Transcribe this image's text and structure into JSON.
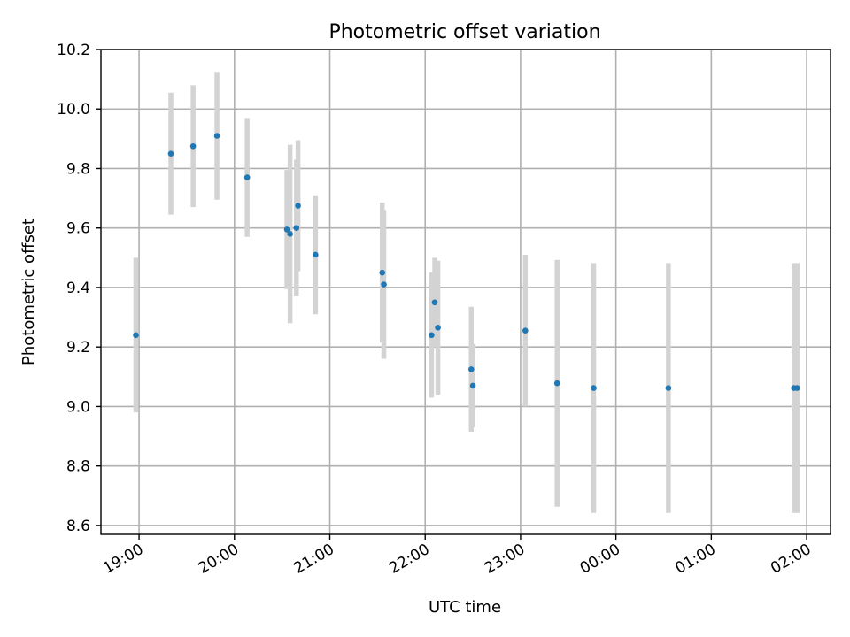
{
  "chart_data": {
    "type": "scatter",
    "title": "Photometric offset variation",
    "xlabel": "UTC time",
    "ylabel": "Photometric offset",
    "ylim": [
      8.57,
      10.2
    ],
    "yticks": [
      "8.6",
      "8.8",
      "9.0",
      "9.2",
      "9.4",
      "9.6",
      "9.8",
      "10.0",
      "10.2"
    ],
    "xlim_hours": [
      18.6,
      26.25
    ],
    "x_tick_hours": [
      19,
      20,
      21,
      22,
      23,
      24,
      25,
      26
    ],
    "xticks": [
      "19:00",
      "20:00",
      "21:00",
      "22:00",
      "23:00",
      "00:00",
      "01:00",
      "02:00"
    ],
    "grid": true,
    "colors": {
      "point": "#1f77b4",
      "errorbar": "#d3d3d3"
    },
    "points": [
      {
        "time": "18:58",
        "y": 9.24,
        "yerr": 0.26
      },
      {
        "time": "19:20",
        "y": 9.85,
        "yerr": 0.205
      },
      {
        "time": "19:34",
        "y": 9.875,
        "yerr": 0.205
      },
      {
        "time": "19:49",
        "y": 9.91,
        "yerr": 0.215
      },
      {
        "time": "20:08",
        "y": 9.77,
        "yerr": 0.2
      },
      {
        "time": "20:33",
        "y": 9.595,
        "yerr": 0.2
      },
      {
        "time": "20:35",
        "y": 9.58,
        "yerr": 0.3
      },
      {
        "time": "20:39",
        "y": 9.6,
        "yerr": 0.23
      },
      {
        "time": "20:40",
        "y": 9.675,
        "yerr": 0.22
      },
      {
        "time": "20:51",
        "y": 9.51,
        "yerr": 0.2
      },
      {
        "time": "21:33",
        "y": 9.45,
        "yerr": 0.235
      },
      {
        "time": "21:34",
        "y": 9.41,
        "yerr": 0.25
      },
      {
        "time": "22:04",
        "y": 9.24,
        "yerr": 0.21
      },
      {
        "time": "22:06",
        "y": 9.35,
        "yerr": 0.15
      },
      {
        "time": "22:08",
        "y": 9.265,
        "yerr": 0.225
      },
      {
        "time": "22:29",
        "y": 9.125,
        "yerr": 0.21
      },
      {
        "time": "22:30",
        "y": 9.07,
        "yerr": 0.14
      },
      {
        "time": "23:03",
        "y": 9.255,
        "yerr": 0.255
      },
      {
        "time": "23:23",
        "y": 9.078,
        "yerr": 0.415
      },
      {
        "time": "23:46",
        "y": 9.062,
        "yerr": 0.42
      },
      {
        "time": "00:33",
        "y": 9.062,
        "yerr": 0.42
      },
      {
        "time": "01:52",
        "y": 9.062,
        "yerr": 0.42
      },
      {
        "time": "01:54",
        "y": 9.062,
        "yerr": 0.42
      }
    ]
  }
}
